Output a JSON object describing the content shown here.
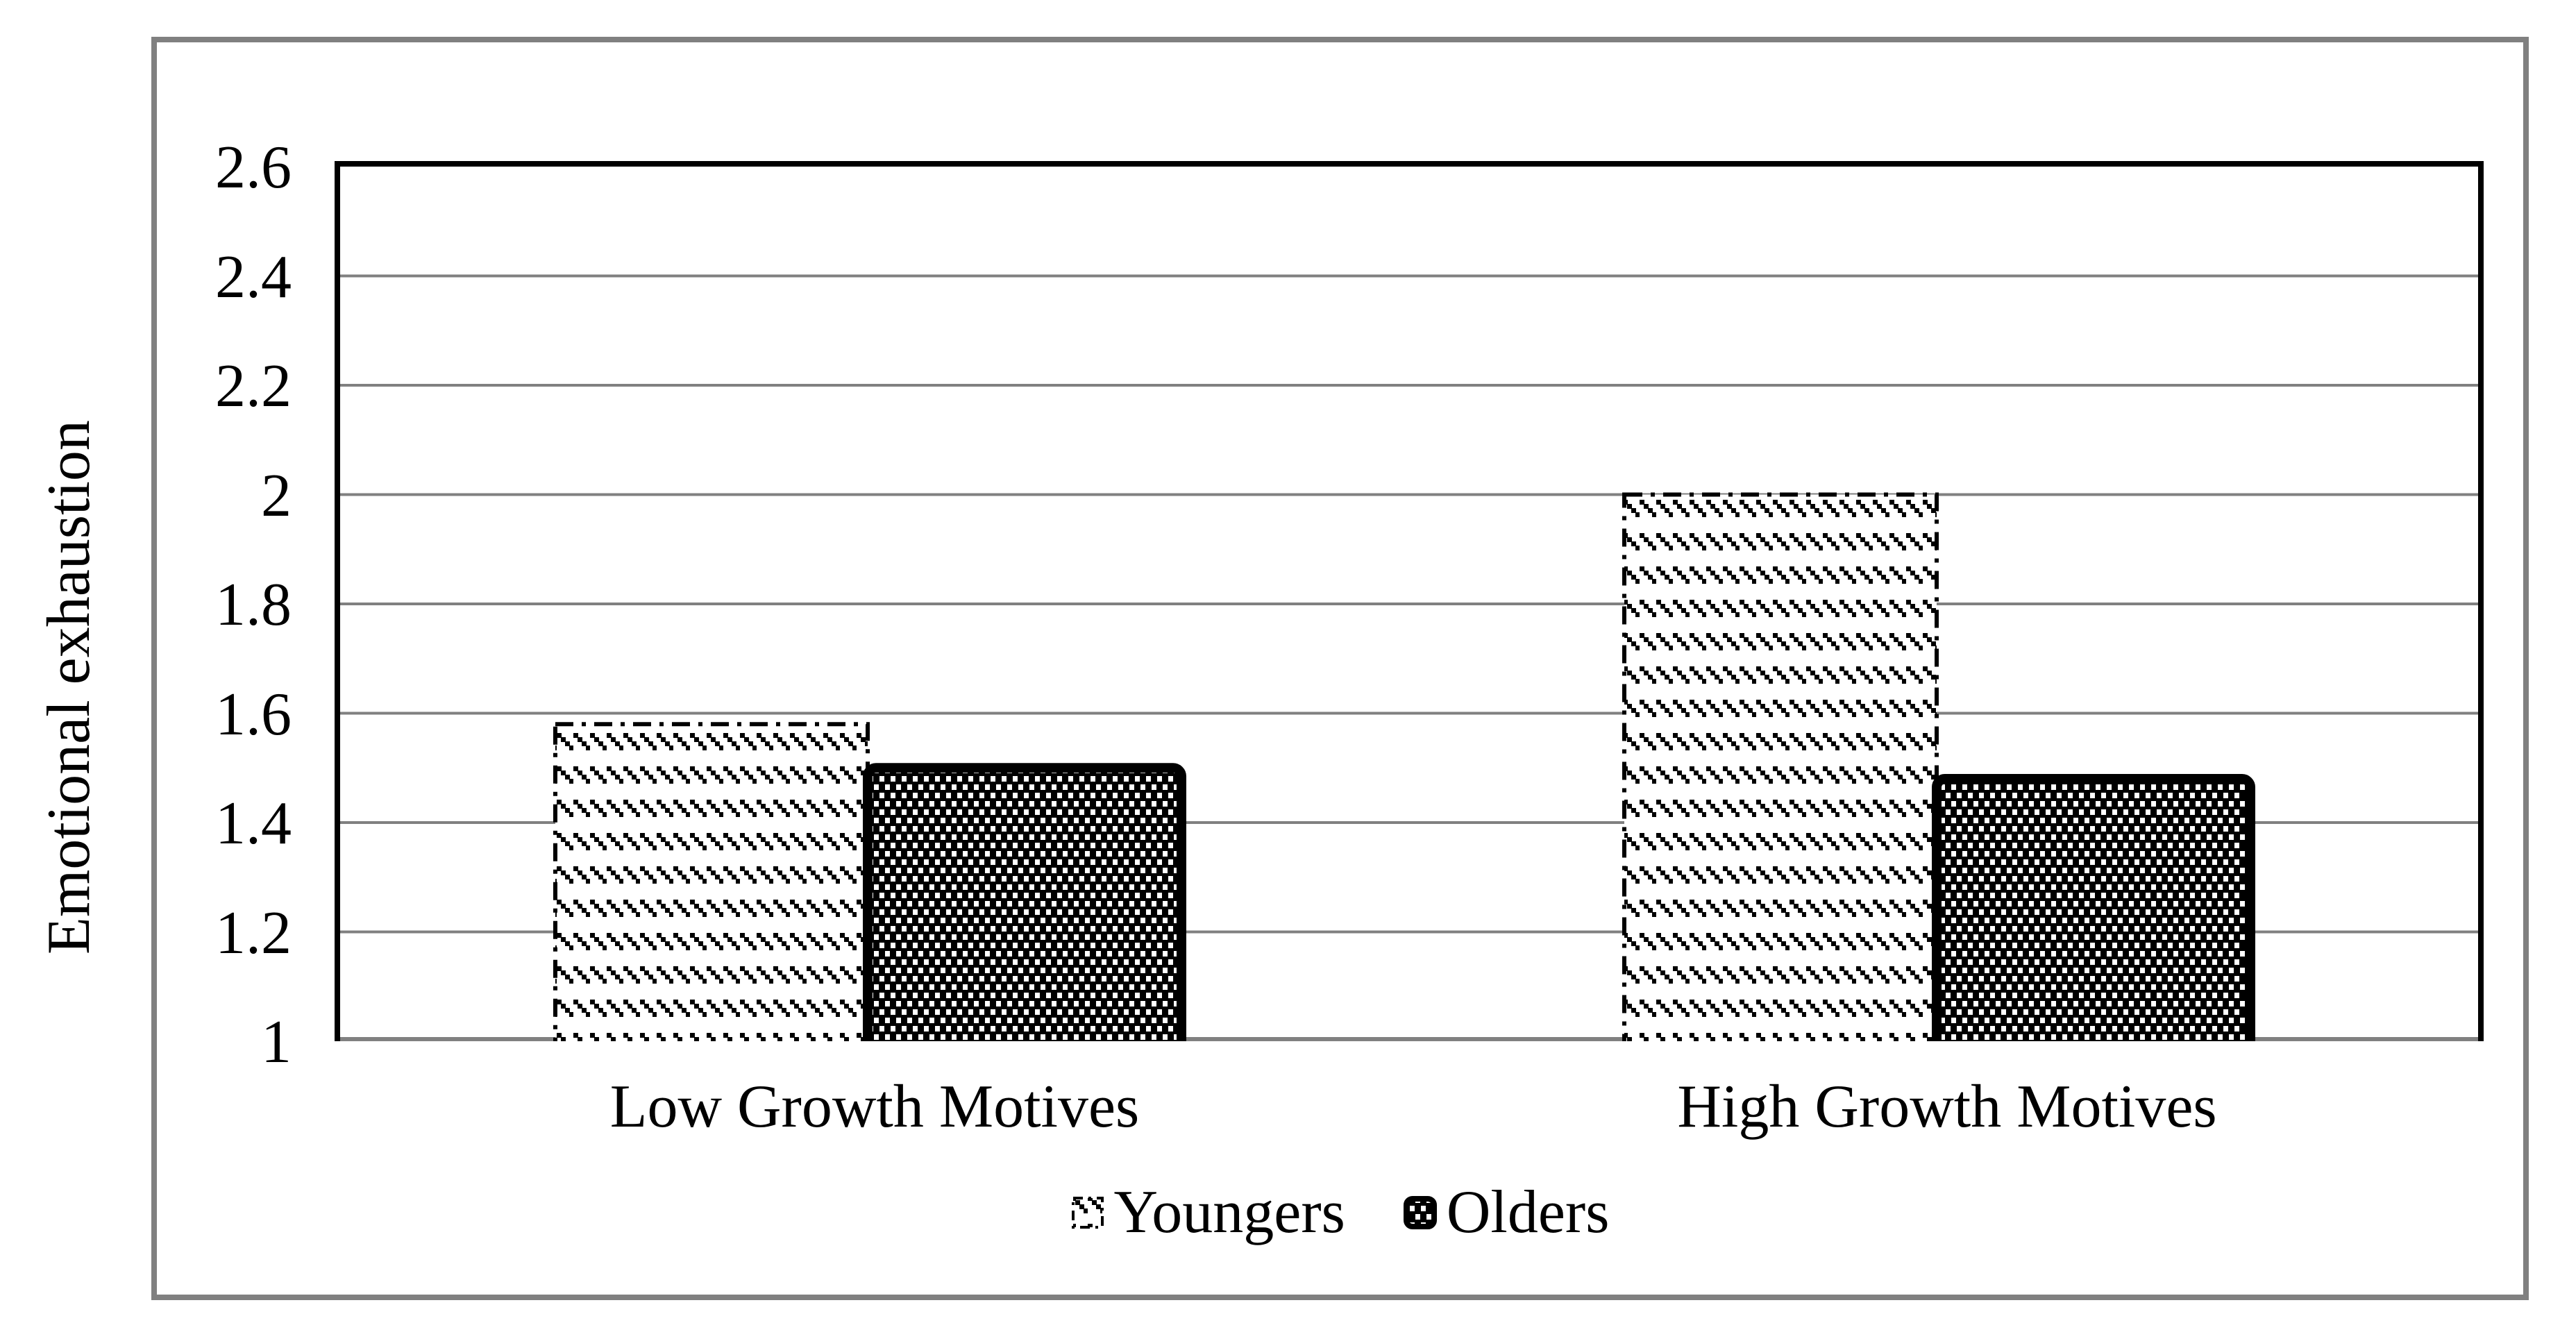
{
  "chart_data": {
    "type": "bar",
    "title": "",
    "categories": [
      "Low Growth Motives",
      "High Growth Motives"
    ],
    "series": [
      {
        "name": "Youngers",
        "values": [
          1.58,
          2.0
        ],
        "fill_pattern": "diagonal-dash-hatch-black-on-white",
        "border": "dash-dot-thin"
      },
      {
        "name": "Olders",
        "values": [
          1.5,
          1.48
        ],
        "fill_pattern": "white-dots-on-black",
        "border": "solid-thick-black"
      }
    ],
    "ylabel": "Emotional exhaustion",
    "xlabel": "",
    "ylim": [
      1,
      2.6
    ],
    "ytick_values": [
      2.6,
      2.4,
      2.2,
      2.0,
      1.8,
      1.6,
      1.4,
      1.2,
      1.0
    ],
    "ytick_labels": [
      "2.6",
      "2.4",
      "2.2",
      "2",
      "1.8",
      "1.6",
      "1.4",
      "1.2",
      "1"
    ],
    "grid": "horizontal",
    "legend_position": "bottom-center",
    "colors": {
      "gridline": "#808080",
      "axis_baseline": "#808080",
      "plot_border": "#000000",
      "figure_frame": "#808080",
      "bar_ink": "#000000",
      "background": "#ffffff"
    }
  }
}
